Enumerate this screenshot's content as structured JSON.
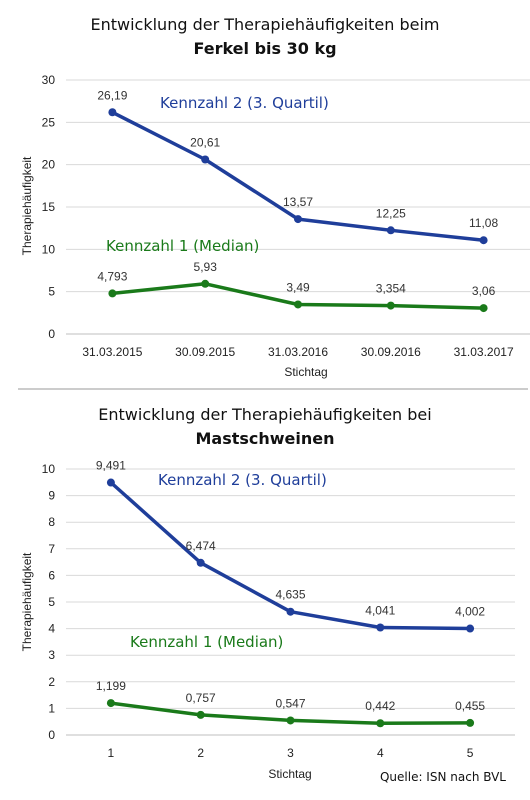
{
  "source": "Quelle: ISN nach BVL",
  "colors": {
    "series_q3": "#1f3e9a",
    "series_median": "#1a7a1a",
    "grid": "#d9d9d9",
    "divider": "#999999"
  },
  "chart_data": [
    {
      "type": "line",
      "title": "Entwicklung der Therapiehäufigkeiten beim",
      "subtitle": "Ferkel bis 30 kg",
      "xlabel": "Stichtag",
      "ylabel": "Therapiehäufigkeit",
      "ylim": [
        0,
        30
      ],
      "yticks": [
        "0",
        "5",
        "10",
        "15",
        "20",
        "25",
        "30"
      ],
      "categories": [
        "31.03.2015",
        "30.09.2015",
        "31.03.2016",
        "30.09.2016",
        "31.03.2017"
      ],
      "grid": true,
      "series": [
        {
          "name": "Kennzahl 2 (3. Quartil)",
          "values": [
            26.19,
            20.61,
            13.57,
            12.25,
            11.08
          ],
          "labels": [
            "26,19",
            "20,61",
            "13,57",
            "12,25",
            "11,08"
          ]
        },
        {
          "name": "Kennzahl 1 (Median)",
          "values": [
            4.793,
            5.93,
            3.49,
            3.354,
            3.06
          ],
          "labels": [
            "4,793",
            "5,93",
            "3,49",
            "3,354",
            "3,06"
          ]
        }
      ]
    },
    {
      "type": "line",
      "title": "Entwicklung der Therapiehäufigkeiten bei",
      "subtitle": "Mastschweinen",
      "xlabel": "Stichtag",
      "ylabel": "Therapiehäufigkeit",
      "ylim": [
        0,
        10
      ],
      "yticks": [
        "0",
        "1",
        "2",
        "3",
        "4",
        "5",
        "6",
        "7",
        "8",
        "9",
        "10"
      ],
      "categories": [
        "1",
        "2",
        "3",
        "4",
        "5"
      ],
      "grid": true,
      "series": [
        {
          "name": "Kennzahl 2 (3. Quartil)",
          "values": [
            9.491,
            6.474,
            4.635,
            4.041,
            4.002
          ],
          "labels": [
            "9,491",
            "6,474",
            "4,635",
            "4,041",
            "4,002"
          ]
        },
        {
          "name": "Kennzahl 1 (Median)",
          "values": [
            1.199,
            0.757,
            0.547,
            0.442,
            0.455
          ],
          "labels": [
            "1,199",
            "0,757",
            "0,547",
            "0,442",
            "0,455"
          ]
        }
      ]
    }
  ]
}
